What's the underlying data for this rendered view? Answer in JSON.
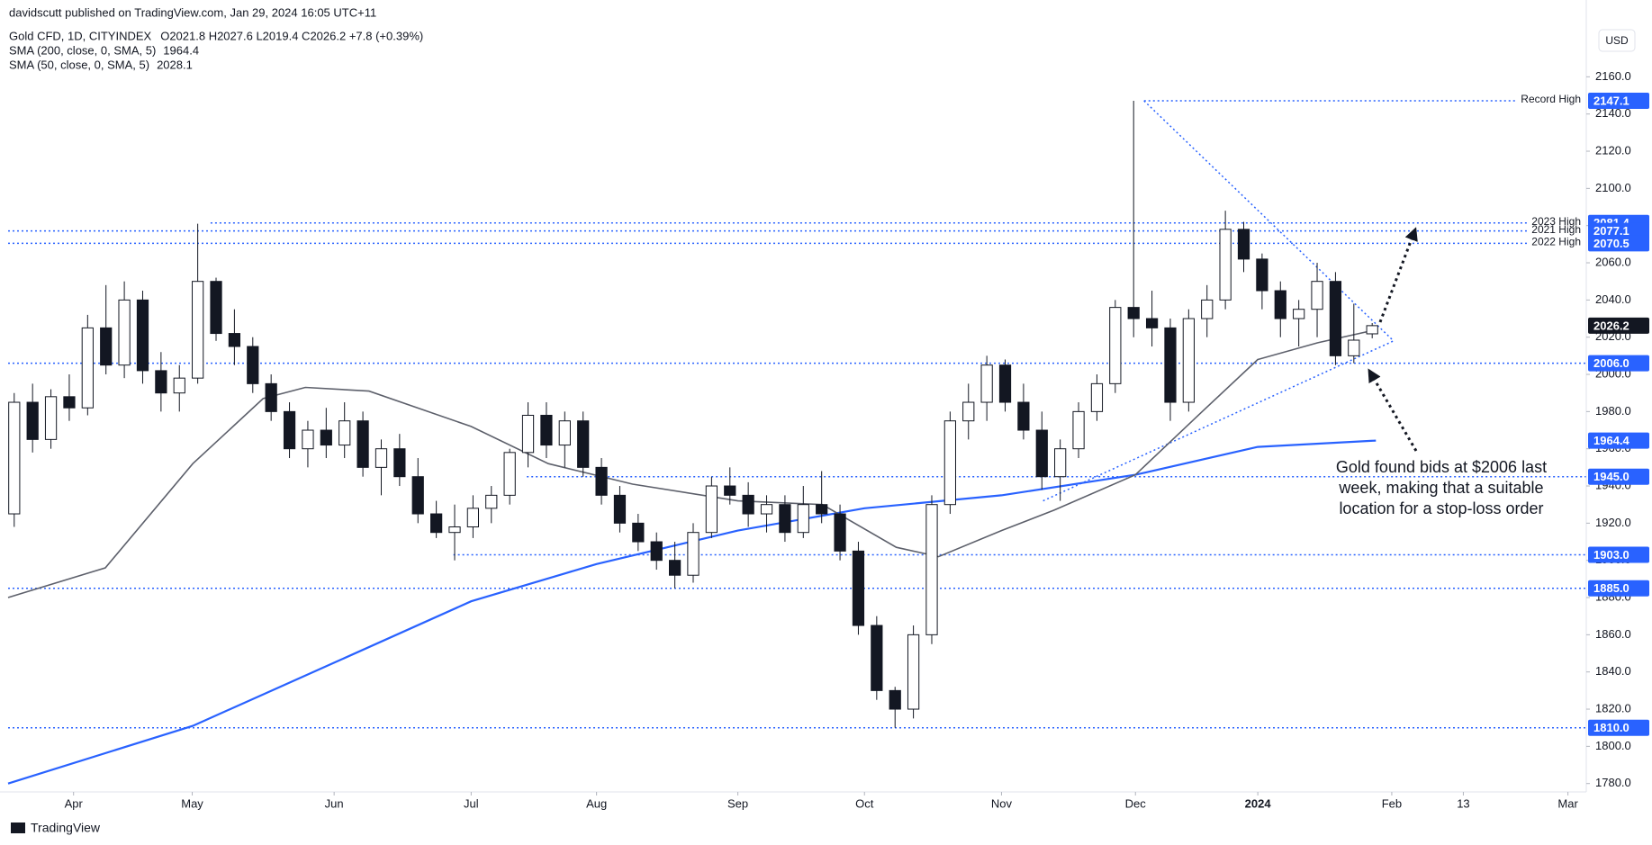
{
  "chart_data": {
    "type": "candlestick",
    "published": "davidscutt published on TradingView.com, Jan 29, 2024 16:05 UTC+11",
    "symbol": "Gold CFD, 1D, CITYINDEX",
    "ohlc": "O2021.8 H2027.6 L2019.4 C2026.2 +7.8 (+0.39%)",
    "currency": "USD",
    "footer": "TradingView",
    "annotation": [
      "Gold found bids at $2006 last",
      "week, making that a suitable",
      "location for a stop-loss order"
    ],
    "xlim": [
      0,
      258
    ],
    "xticks": [
      {
        "value": 10.7,
        "label": "Apr"
      },
      {
        "value": 30.1,
        "label": "May"
      },
      {
        "value": 53.3,
        "label": "Jun"
      },
      {
        "value": 75.7,
        "label": "Jul"
      },
      {
        "value": 96.2,
        "label": "Aug"
      },
      {
        "value": 119.3,
        "label": "Sep"
      },
      {
        "value": 140,
        "label": "Oct"
      },
      {
        "value": 162.4,
        "label": "Nov"
      },
      {
        "value": 184.3,
        "label": "Dec"
      },
      {
        "value": 204.3,
        "label": "2024"
      },
      {
        "value": 226.2,
        "label": "Feb"
      },
      {
        "value": 237.9,
        "label": "13"
      },
      {
        "value": 255,
        "label": "Mar"
      }
    ],
    "ylim": [
      1775.5,
      2201.3
    ],
    "yticks": [
      {
        "value": 1780,
        "label": "1780.0"
      },
      {
        "value": 1800,
        "label": "1800.0"
      },
      {
        "value": 1820,
        "label": "1820.0"
      },
      {
        "value": 1840,
        "label": "1840.0"
      },
      {
        "value": 1860,
        "label": "1860.0"
      },
      {
        "value": 1880,
        "label": "1880.0"
      },
      {
        "value": 1900,
        "label": "1900.0"
      },
      {
        "value": 1920,
        "label": "1920.0"
      },
      {
        "value": 1940,
        "label": "1940.0"
      },
      {
        "value": 1960,
        "label": "1960.0"
      },
      {
        "value": 1980,
        "label": "1980.0"
      },
      {
        "value": 2000,
        "label": "2000.0"
      },
      {
        "value": 2020,
        "label": "2020.0"
      },
      {
        "value": 2040,
        "label": "2040.0"
      },
      {
        "value": 2060,
        "label": "2060.0"
      },
      {
        "value": 2080,
        "label": "2080.0"
      },
      {
        "value": 2100,
        "label": "2100.0"
      },
      {
        "value": 2120,
        "label": "2120.0"
      },
      {
        "value": 2140,
        "label": "2140.0"
      },
      {
        "value": 2160,
        "label": "2160.0"
      }
    ],
    "grid": false,
    "up_color": "#ffffff",
    "down_color": "#131722",
    "candles": {
      "x": [
        1,
        4,
        7,
        10,
        13,
        16,
        19,
        22,
        25,
        28,
        31,
        34,
        37,
        40,
        43,
        46,
        49,
        52,
        55,
        58,
        61,
        64,
        67,
        70,
        73,
        76,
        79,
        82,
        85,
        88,
        91,
        94,
        97,
        100,
        103,
        106,
        109,
        112,
        115,
        118,
        121,
        124,
        127,
        130,
        133,
        136,
        139,
        142,
        145,
        148,
        151,
        154,
        157,
        160,
        163,
        166,
        169,
        172,
        175,
        178,
        181,
        184,
        187,
        190,
        193,
        196,
        199,
        202,
        205,
        208,
        211,
        214,
        217,
        220,
        223
      ],
      "open": [
        1925,
        1985,
        1965,
        1988,
        1982,
        2025,
        2005,
        2040,
        2002,
        1990,
        1998,
        2050,
        2022,
        2015,
        1995,
        1980,
        1960,
        1970,
        1962,
        1975,
        1950,
        1960,
        1945,
        1925,
        1915,
        1918,
        1928,
        1935,
        1958,
        1978,
        1962,
        1975,
        1950,
        1935,
        1920,
        1910,
        1900,
        1892,
        1915,
        1940,
        1935,
        1925,
        1930,
        1915,
        1930,
        1925,
        1905,
        1865,
        1830,
        1820,
        1860,
        1930,
        1975,
        1985,
        2005,
        1985,
        1970,
        1945,
        1960,
        1980,
        1995,
        2036,
        2030,
        2025,
        1985,
        2030,
        2040,
        2078,
        2062,
        2045,
        2030,
        2035,
        2050,
        2010,
        2021.8
      ],
      "high": [
        1990,
        1995,
        1992,
        2000,
        2032,
        2048,
        2050,
        2045,
        2012,
        2005,
        2081,
        2052,
        2035,
        2020,
        2000,
        1985,
        1975,
        1982,
        1985,
        1980,
        1965,
        1968,
        1955,
        1932,
        1930,
        1935,
        1940,
        1960,
        1985,
        1985,
        1980,
        1980,
        1955,
        1940,
        1925,
        1915,
        1910,
        1920,
        1945,
        1950,
        1942,
        1935,
        1935,
        1940,
        1948,
        1930,
        1910,
        1870,
        1832,
        1865,
        1935,
        1980,
        1995,
        2010,
        2008,
        1995,
        1980,
        1965,
        1985,
        2000,
        2040,
        2147.1,
        2045,
        2030,
        2035,
        2048,
        2088,
        2082,
        2065,
        2050,
        2040,
        2060,
        2055,
        2038,
        2027.6
      ],
      "low": [
        1918,
        1958,
        1960,
        1975,
        1978,
        2000,
        1998,
        1995,
        1980,
        1980,
        1995,
        2018,
        2005,
        1990,
        1975,
        1955,
        1950,
        1955,
        1955,
        1945,
        1935,
        1940,
        1920,
        1912,
        1900,
        1912,
        1920,
        1930,
        1950,
        1955,
        1950,
        1945,
        1930,
        1915,
        1905,
        1895,
        1885,
        1888,
        1912,
        1930,
        1918,
        1915,
        1910,
        1912,
        1920,
        1900,
        1860,
        1825,
        1810,
        1815,
        1855,
        1925,
        1965,
        1975,
        1980,
        1965,
        1938,
        1932,
        1955,
        1975,
        1990,
        2020,
        2015,
        1975,
        1980,
        2020,
        2035,
        2055,
        2035,
        2020,
        2015,
        2020,
        2005,
        2006,
        2019.4
      ],
      "close": [
        1985,
        1965,
        1988,
        1982,
        2025,
        2005,
        2040,
        2002,
        1990,
        1998,
        2050,
        2022,
        2015,
        1995,
        1980,
        1960,
        1970,
        1962,
        1975,
        1950,
        1960,
        1945,
        1925,
        1915,
        1918,
        1928,
        1935,
        1958,
        1978,
        1962,
        1975,
        1950,
        1935,
        1920,
        1910,
        1900,
        1892,
        1915,
        1940,
        1935,
        1925,
        1930,
        1915,
        1930,
        1925,
        1905,
        1865,
        1830,
        1820,
        1860,
        1930,
        1975,
        1985,
        2005,
        1985,
        1970,
        1945,
        1960,
        1980,
        1995,
        2036,
        2030,
        2025,
        1985,
        2030,
        2040,
        2078,
        2062,
        2045,
        2030,
        2035,
        2050,
        2010,
        2018.4,
        2026.2
      ]
    },
    "series": [
      {
        "name": "SMA (200, close, 0, SMA, 5)",
        "legend_value": "1964.4",
        "color": "#2962ff",
        "x": [
          0,
          30.2,
          53.3,
          75.7,
          96.2,
          119.3,
          140,
          162.4,
          184.3,
          204.3,
          223.6
        ],
        "values": [
          1780,
          1811,
          1845,
          1878,
          1898,
          1916,
          1928,
          1935,
          1946,
          1961,
          1964.4
        ]
      },
      {
        "name": "SMA (50, close, 0, SMA, 5)",
        "legend_value": "2028.1",
        "color": "#5d606b",
        "x": [
          0,
          15.9,
          30.2,
          41.7,
          48.6,
          59,
          75.7,
          88.3,
          102.1,
          119.3,
          133.1,
          145.2,
          152.1,
          162.4,
          171,
          184.3,
          195.2,
          204.3,
          214.1,
          223.6
        ],
        "values": [
          1880,
          1896,
          1952,
          1987,
          1993,
          1991,
          1972,
          1952,
          1941,
          1932,
          1930,
          1907,
          1902,
          1916,
          1927,
          1946,
          1980,
          2008,
          2017,
          2024
        ]
      }
    ],
    "level_color": "#2962ff",
    "levels": [
      {
        "value": 2147.1,
        "text": "Record High",
        "from": 185.7
      },
      {
        "value": 2081.4,
        "text": "2023 High",
        "from": 33.1
      },
      {
        "value": 2077.1,
        "text": "2021 High",
        "from": 0
      },
      {
        "value": 2070.5,
        "text": "2022 High",
        "from": 0
      },
      {
        "value": 2006,
        "label": "2006.0",
        "from": 0
      },
      {
        "value": 1945,
        "label": "1945.0",
        "from": 84.8
      },
      {
        "value": 1903,
        "label": "1903.0",
        "from": 72.8
      },
      {
        "value": 1885,
        "label": "1885.0",
        "from": 0
      },
      {
        "value": 1810,
        "label": "1810.0",
        "from": 0
      }
    ],
    "price_labels": [
      {
        "value": 2026.2,
        "color": "#131722"
      },
      {
        "value": 1964.4,
        "color": "#2962ff"
      }
    ],
    "trendlines": [
      {
        "x": [
          185.7,
          226.5
        ],
        "y": [
          2147.1,
          2018
        ]
      },
      {
        "x": [
          169.2,
          226.5
        ],
        "y": [
          1932,
          2018
        ]
      }
    ]
  }
}
